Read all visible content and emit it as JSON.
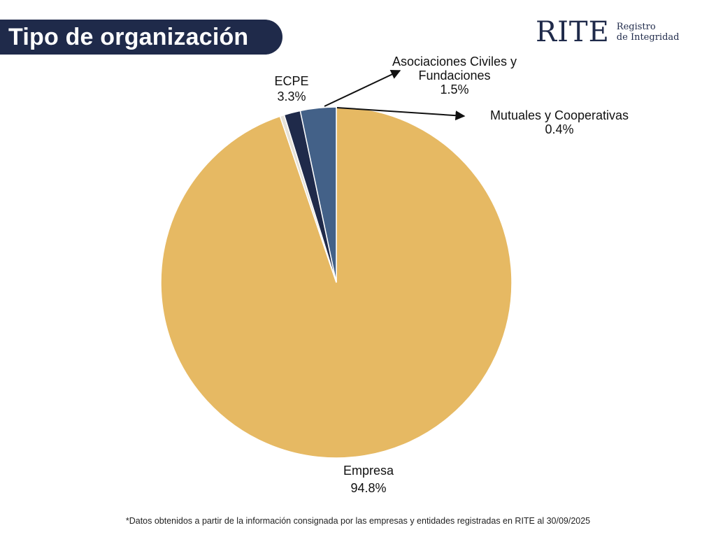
{
  "header": {
    "title": "Tipo de organización",
    "logo_mark": "RITE",
    "logo_line1": "Registro",
    "logo_line2": "de Integridad"
  },
  "colors": {
    "title_bg": "#1f2a4a",
    "Empresa": "#e6b963",
    "ECPE": "#436188",
    "Asociaciones Civiles y Fundaciones": "#1f2a4a",
    "Mutuales y Cooperativas": "#e6e1d6"
  },
  "chart_data": {
    "type": "pie",
    "slices": [
      {
        "name": "Empresa",
        "value": 94.8,
        "label": "94.8%"
      },
      {
        "name": "Mutuales y Cooperativas",
        "value": 0.4,
        "label": "0.4%"
      },
      {
        "name": "Asociaciones Civiles y Fundaciones",
        "value": 1.5,
        "label": "1.5%"
      },
      {
        "name": "ECPE",
        "value": 3.3,
        "label": "3.3%"
      }
    ],
    "start_angle": "top",
    "direction": "clockwise"
  },
  "labels": {
    "empresa_name": "Empresa",
    "empresa_pct": "94.8%",
    "ecpe_name": "ECPE",
    "ecpe_pct": "3.3%",
    "asoc_line1": "Asociaciones Civiles y",
    "asoc_line2": "Fundaciones",
    "asoc_pct": "1.5%",
    "mutuales_name": "Mutuales y Cooperativas",
    "mutuales_pct": "0.4%"
  },
  "footnote": "*Datos obtenidos a partir de la información consignada por las empresas y entidades registradas en RITE al 30/09/2025"
}
